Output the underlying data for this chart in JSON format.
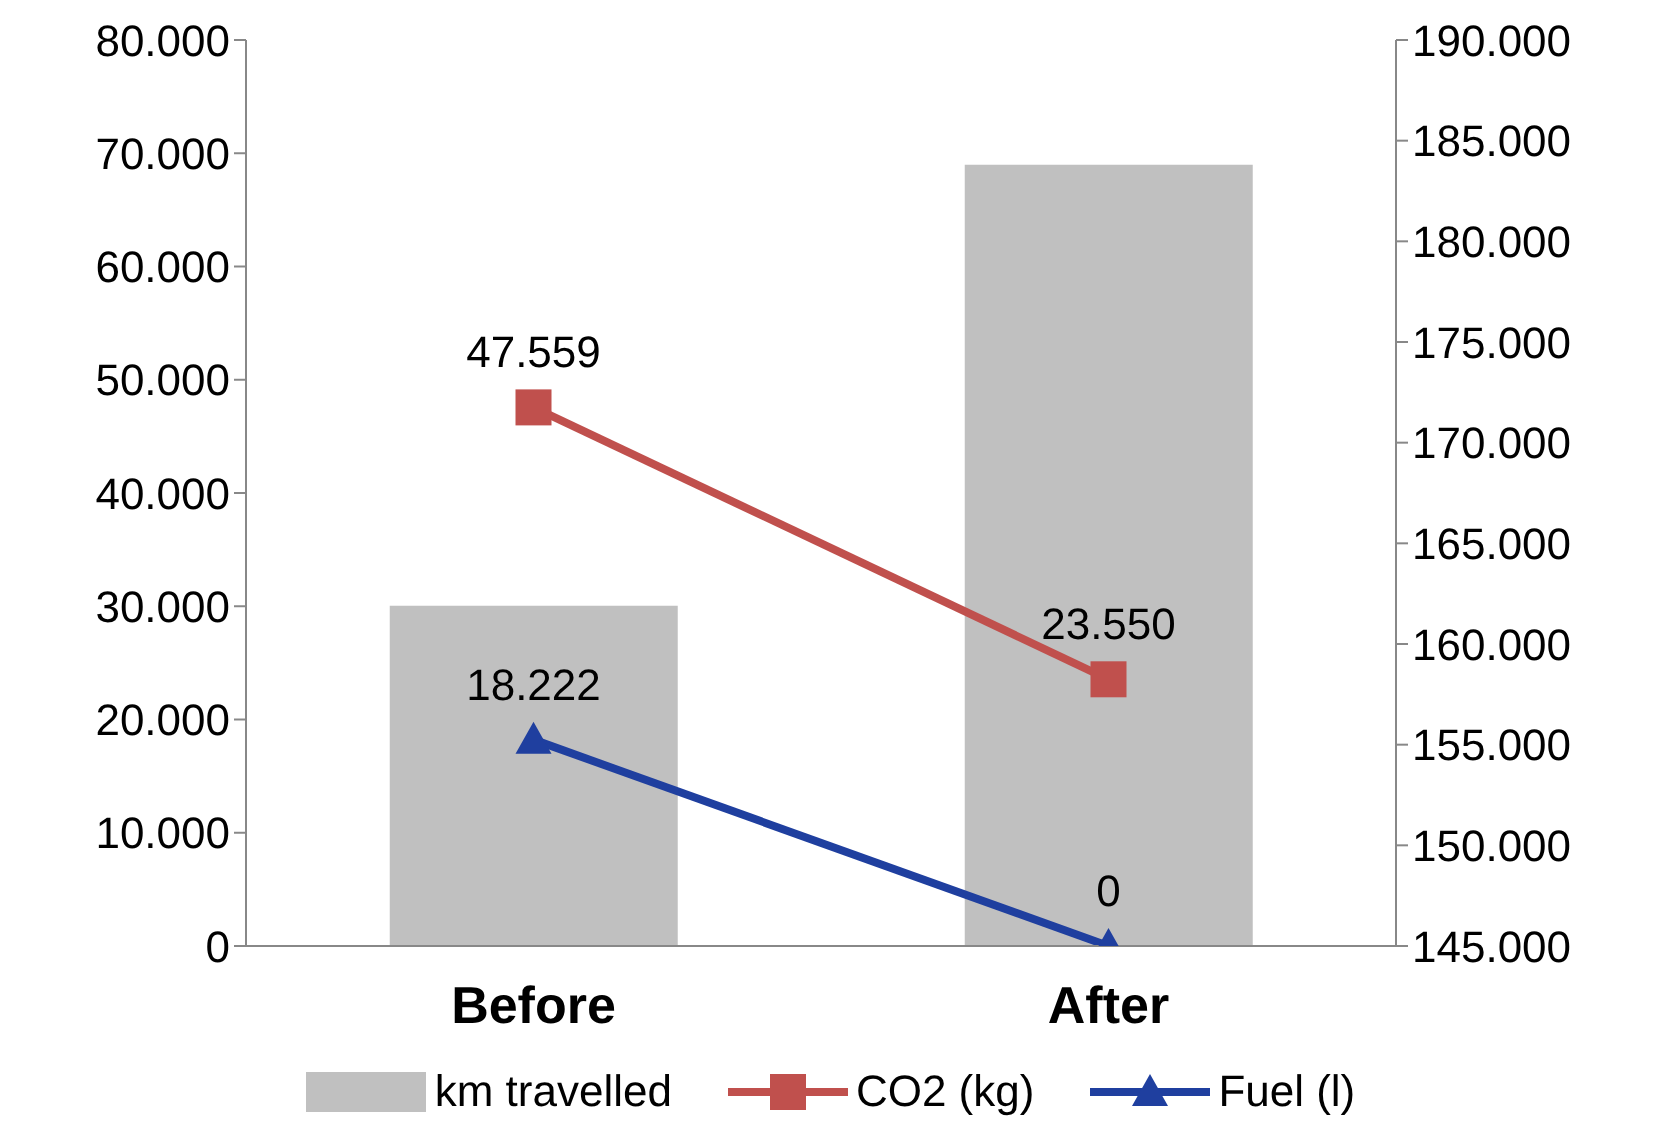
{
  "chart_data": {
    "type": "bar",
    "categories": [
      "Before",
      "After"
    ],
    "series": [
      {
        "name": "km travelled",
        "axis": "y2",
        "color": "#c0c0c0",
        "values": [
          161900,
          183800
        ]
      },
      {
        "name": "CO2 (kg)",
        "type": "line",
        "color": "#c0504d",
        "marker": "square",
        "values": [
          47559,
          23550
        ],
        "value_labels": [
          "47.559",
          "23.550"
        ]
      },
      {
        "name": "Fuel (l)",
        "type": "line",
        "color": "#1f3f9f",
        "marker": "triangle",
        "values": [
          18222,
          0
        ],
        "value_labels": [
          "18.222",
          "0"
        ]
      }
    ],
    "ylim": [
      0,
      80000
    ],
    "yticks": [
      {
        "value": 0,
        "label": "0"
      },
      {
        "value": 10000,
        "label": "10.000"
      },
      {
        "value": 20000,
        "label": "20.000"
      },
      {
        "value": 30000,
        "label": "30.000"
      },
      {
        "value": 40000,
        "label": "40.000"
      },
      {
        "value": 50000,
        "label": "50.000"
      },
      {
        "value": 60000,
        "label": "60.000"
      },
      {
        "value": 70000,
        "label": "70.000"
      },
      {
        "value": 80000,
        "label": "80.000"
      }
    ],
    "y2lim": [
      145000,
      190000
    ],
    "y2ticks": [
      {
        "value": 145000,
        "label": "145.000"
      },
      {
        "value": 150000,
        "label": "150.000"
      },
      {
        "value": 155000,
        "label": "155.000"
      },
      {
        "value": 160000,
        "label": "160.000"
      },
      {
        "value": 165000,
        "label": "165.000"
      },
      {
        "value": 170000,
        "label": "170.000"
      },
      {
        "value": 175000,
        "label": "175.000"
      },
      {
        "value": 180000,
        "label": "180.000"
      },
      {
        "value": 185000,
        "label": "185.000"
      },
      {
        "value": 190000,
        "label": "190.000"
      }
    ],
    "legend": "bottom",
    "grid": false
  }
}
